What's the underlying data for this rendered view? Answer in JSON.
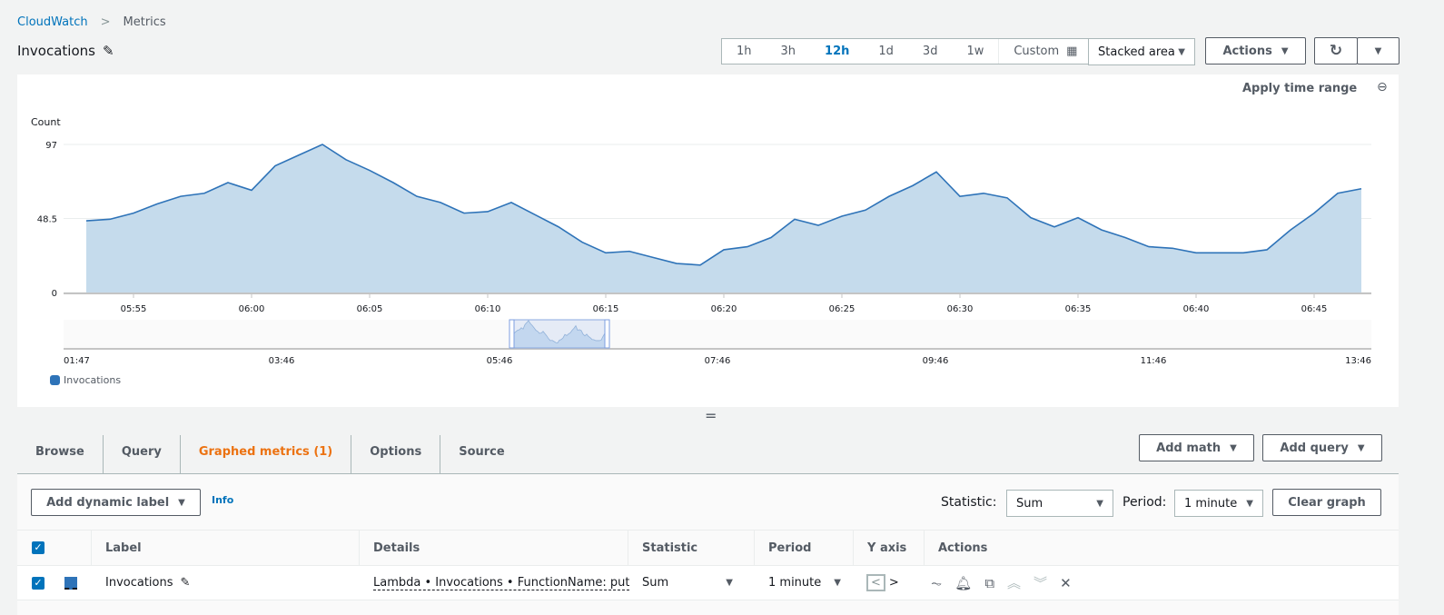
{
  "breadcrumb": {
    "root": "CloudWatch",
    "current": "Metrics"
  },
  "title": "Invocations",
  "time_ranges": [
    "1h",
    "3h",
    "12h",
    "1d",
    "3d",
    "1w"
  ],
  "time_selected": "12h",
  "custom_label": "Custom",
  "chart_type": "Stacked area",
  "actions_label": "Actions",
  "apply_time_range": "Apply time range",
  "colors": {
    "series": "#2e73b8",
    "fill": "#c5dbec",
    "accent": "#0073bb",
    "tab_active": "#ec7211"
  },
  "chart_data": {
    "type": "area",
    "ylabel": "Count",
    "ylim": [
      0,
      97
    ],
    "yticks": [
      "0",
      "48.5",
      "97"
    ],
    "xticks": [
      "05:55",
      "06:00",
      "06:05",
      "06:10",
      "06:15",
      "06:20",
      "06:25",
      "06:30",
      "06:35",
      "06:40",
      "06:45"
    ],
    "x_start": "05:53",
    "x_step_minutes": 1,
    "series": [
      {
        "name": "Invocations",
        "values": [
          47,
          48,
          52,
          58,
          63,
          65,
          72,
          67,
          83,
          90,
          97,
          87,
          80,
          72,
          63,
          59,
          52,
          53,
          59,
          51,
          43,
          33,
          26,
          27,
          23,
          19,
          18,
          28,
          30,
          36,
          48,
          44,
          50,
          54,
          63,
          70,
          79,
          63,
          65,
          62,
          49,
          43,
          49,
          41,
          36,
          30,
          29,
          26,
          26,
          26,
          28,
          41,
          52,
          65,
          68
        ]
      }
    ],
    "navigator_ticks": [
      "01:47",
      "03:46",
      "05:46",
      "07:46",
      "09:46",
      "11:46",
      "13:46"
    ],
    "legend": "bottom-left"
  },
  "tabs": [
    "Browse",
    "Query",
    "Graphed metrics (1)",
    "Options",
    "Source"
  ],
  "active_tab": "Graphed metrics (1)",
  "add_math": "Add math",
  "add_query": "Add query",
  "add_dynamic_label": "Add dynamic label",
  "info": "Info",
  "statistic_label": "Statistic:",
  "statistic": "Sum",
  "period_label": "Period:",
  "period": "1 minute",
  "clear_graph": "Clear graph",
  "table": {
    "headers": [
      "Label",
      "Details",
      "Statistic",
      "Period",
      "Y axis",
      "Actions"
    ],
    "rows": [
      {
        "label": "Invocations",
        "details": "Lambda • Invocations • FunctionName: putIte",
        "statistic": "Sum",
        "period": "1 minute"
      }
    ]
  }
}
